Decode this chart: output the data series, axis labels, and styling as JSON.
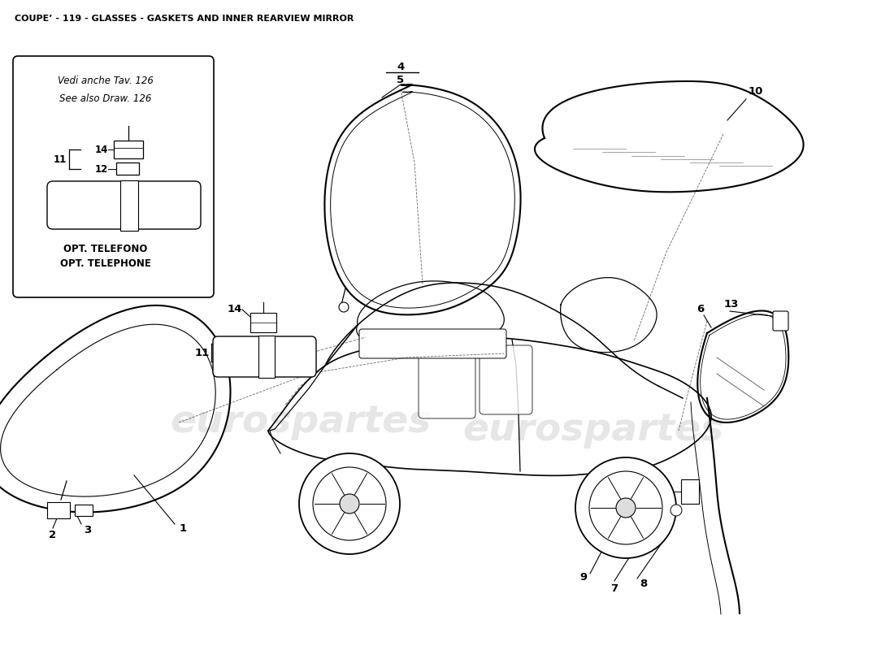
{
  "title": "COUPE’ - 119 - GLASSES - GASKETS AND INNER REARVIEW MIRROR",
  "bg": "#ffffff",
  "lc": "#000000",
  "note_line1": "Vedi anche Tav. 126",
  "note_line2": "See also Draw. 126",
  "note_line3": "OPT. TELEFONO",
  "note_line4": "OPT. TELEPHONE",
  "wm1": "eurospartes",
  "wm2": "eurospartes",
  "figsize": [
    11.0,
    8.0
  ],
  "dpi": 100,
  "windshield_x": [
    500,
    495,
    450,
    415,
    400,
    405,
    430,
    475,
    530,
    575,
    615,
    635,
    640,
    620,
    570,
    510
  ],
  "windshield_y": [
    105,
    110,
    135,
    175,
    235,
    305,
    360,
    385,
    385,
    370,
    340,
    295,
    230,
    165,
    120,
    105
  ],
  "rearwin_x": [
    55,
    265,
    235,
    25,
    55
  ],
  "rearwin_y": [
    440,
    415,
    590,
    615,
    440
  ],
  "rearwin_inner_x": [
    70,
    250,
    222,
    40,
    70
  ],
  "rearwin_inner_y": [
    455,
    430,
    575,
    600,
    455
  ],
  "roof_glass_x": [
    670,
    720,
    840,
    925,
    985,
    970,
    900,
    790,
    700,
    660,
    670
  ],
  "roof_glass_y": [
    170,
    115,
    100,
    115,
    165,
    205,
    230,
    235,
    215,
    190,
    170
  ],
  "quarter_glass_x": [
    870,
    950,
    970,
    955,
    895,
    860,
    870
  ],
  "quarter_glass_y": [
    410,
    385,
    430,
    490,
    520,
    490,
    410
  ]
}
